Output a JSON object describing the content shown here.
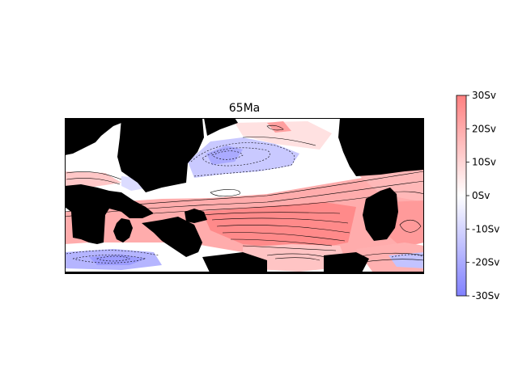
{
  "figure": {
    "title": "65Ma",
    "type": "map-heatmap-with-contours"
  },
  "colorbar": {
    "min": -30,
    "max": 30,
    "unit": "Sv",
    "ticks": [
      30,
      20,
      10,
      0,
      -10,
      -20,
      -30
    ],
    "tick_labels": [
      "30Sv",
      "20Sv",
      "10Sv",
      "0Sv",
      "-10Sv",
      "-20Sv",
      "-30Sv"
    ],
    "colormap": "bwr",
    "colors": {
      "low": "#8080ff",
      "mid": "#ffffff",
      "high": "#ff8080"
    }
  },
  "map": {
    "land_color": "#000000",
    "contour_color": "#000000"
  }
}
